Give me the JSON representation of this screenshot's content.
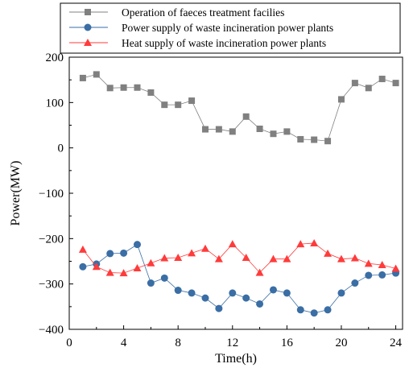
{
  "chart_data": {
    "type": "line",
    "xlabel": "Time(h)",
    "ylabel": "Power(MW)",
    "xlim": [
      0,
      24.5
    ],
    "ylim": [
      -400,
      200
    ],
    "xticks": [
      0,
      4,
      8,
      12,
      16,
      20,
      24
    ],
    "xtick_labels": [
      "0",
      "4",
      "8",
      "12",
      "16",
      "20",
      "24"
    ],
    "yticks": [
      200,
      100,
      0,
      -100,
      -200,
      -300,
      -400
    ],
    "ytick_labels": [
      "200",
      "100",
      "0",
      "−100",
      "−200",
      "−300",
      "−400"
    ],
    "grid": false,
    "legend_position": "top",
    "x": [
      1,
      2,
      3,
      4,
      5,
      6,
      7,
      8,
      9,
      10,
      11,
      12,
      13,
      14,
      15,
      16,
      17,
      18,
      19,
      20,
      21,
      22,
      23,
      24
    ],
    "series": [
      {
        "name": "Operation of faeces treatment facilies",
        "marker": "square",
        "color": "#808080",
        "values": [
          154,
          162,
          132,
          133,
          133,
          122,
          95,
          95,
          104,
          41,
          41,
          36,
          69,
          42,
          31,
          36,
          19,
          18,
          15,
          107,
          143,
          132,
          152,
          143
        ]
      },
      {
        "name": "Power  supply of waste incineration power plants",
        "marker": "circle",
        "color": "#3a6ea5",
        "values": [
          -262,
          -256,
          -233,
          -232,
          -213,
          -298,
          -287,
          -314,
          -320,
          -331,
          -354,
          -320,
          -331,
          -344,
          -313,
          -320,
          -357,
          -364,
          -357,
          -320,
          -298,
          -281,
          -280,
          -276
        ]
      },
      {
        "name": "Heat supply of waste incineration power plants",
        "marker": "triangle",
        "color": "#ff3b3b",
        "values": [
          -224,
          -262,
          -275,
          -276,
          -265,
          -254,
          -243,
          -242,
          -232,
          -222,
          -245,
          -212,
          -242,
          -275,
          -245,
          -245,
          -212,
          -210,
          -233,
          -245,
          -243,
          -255,
          -258,
          -266
        ]
      }
    ]
  }
}
